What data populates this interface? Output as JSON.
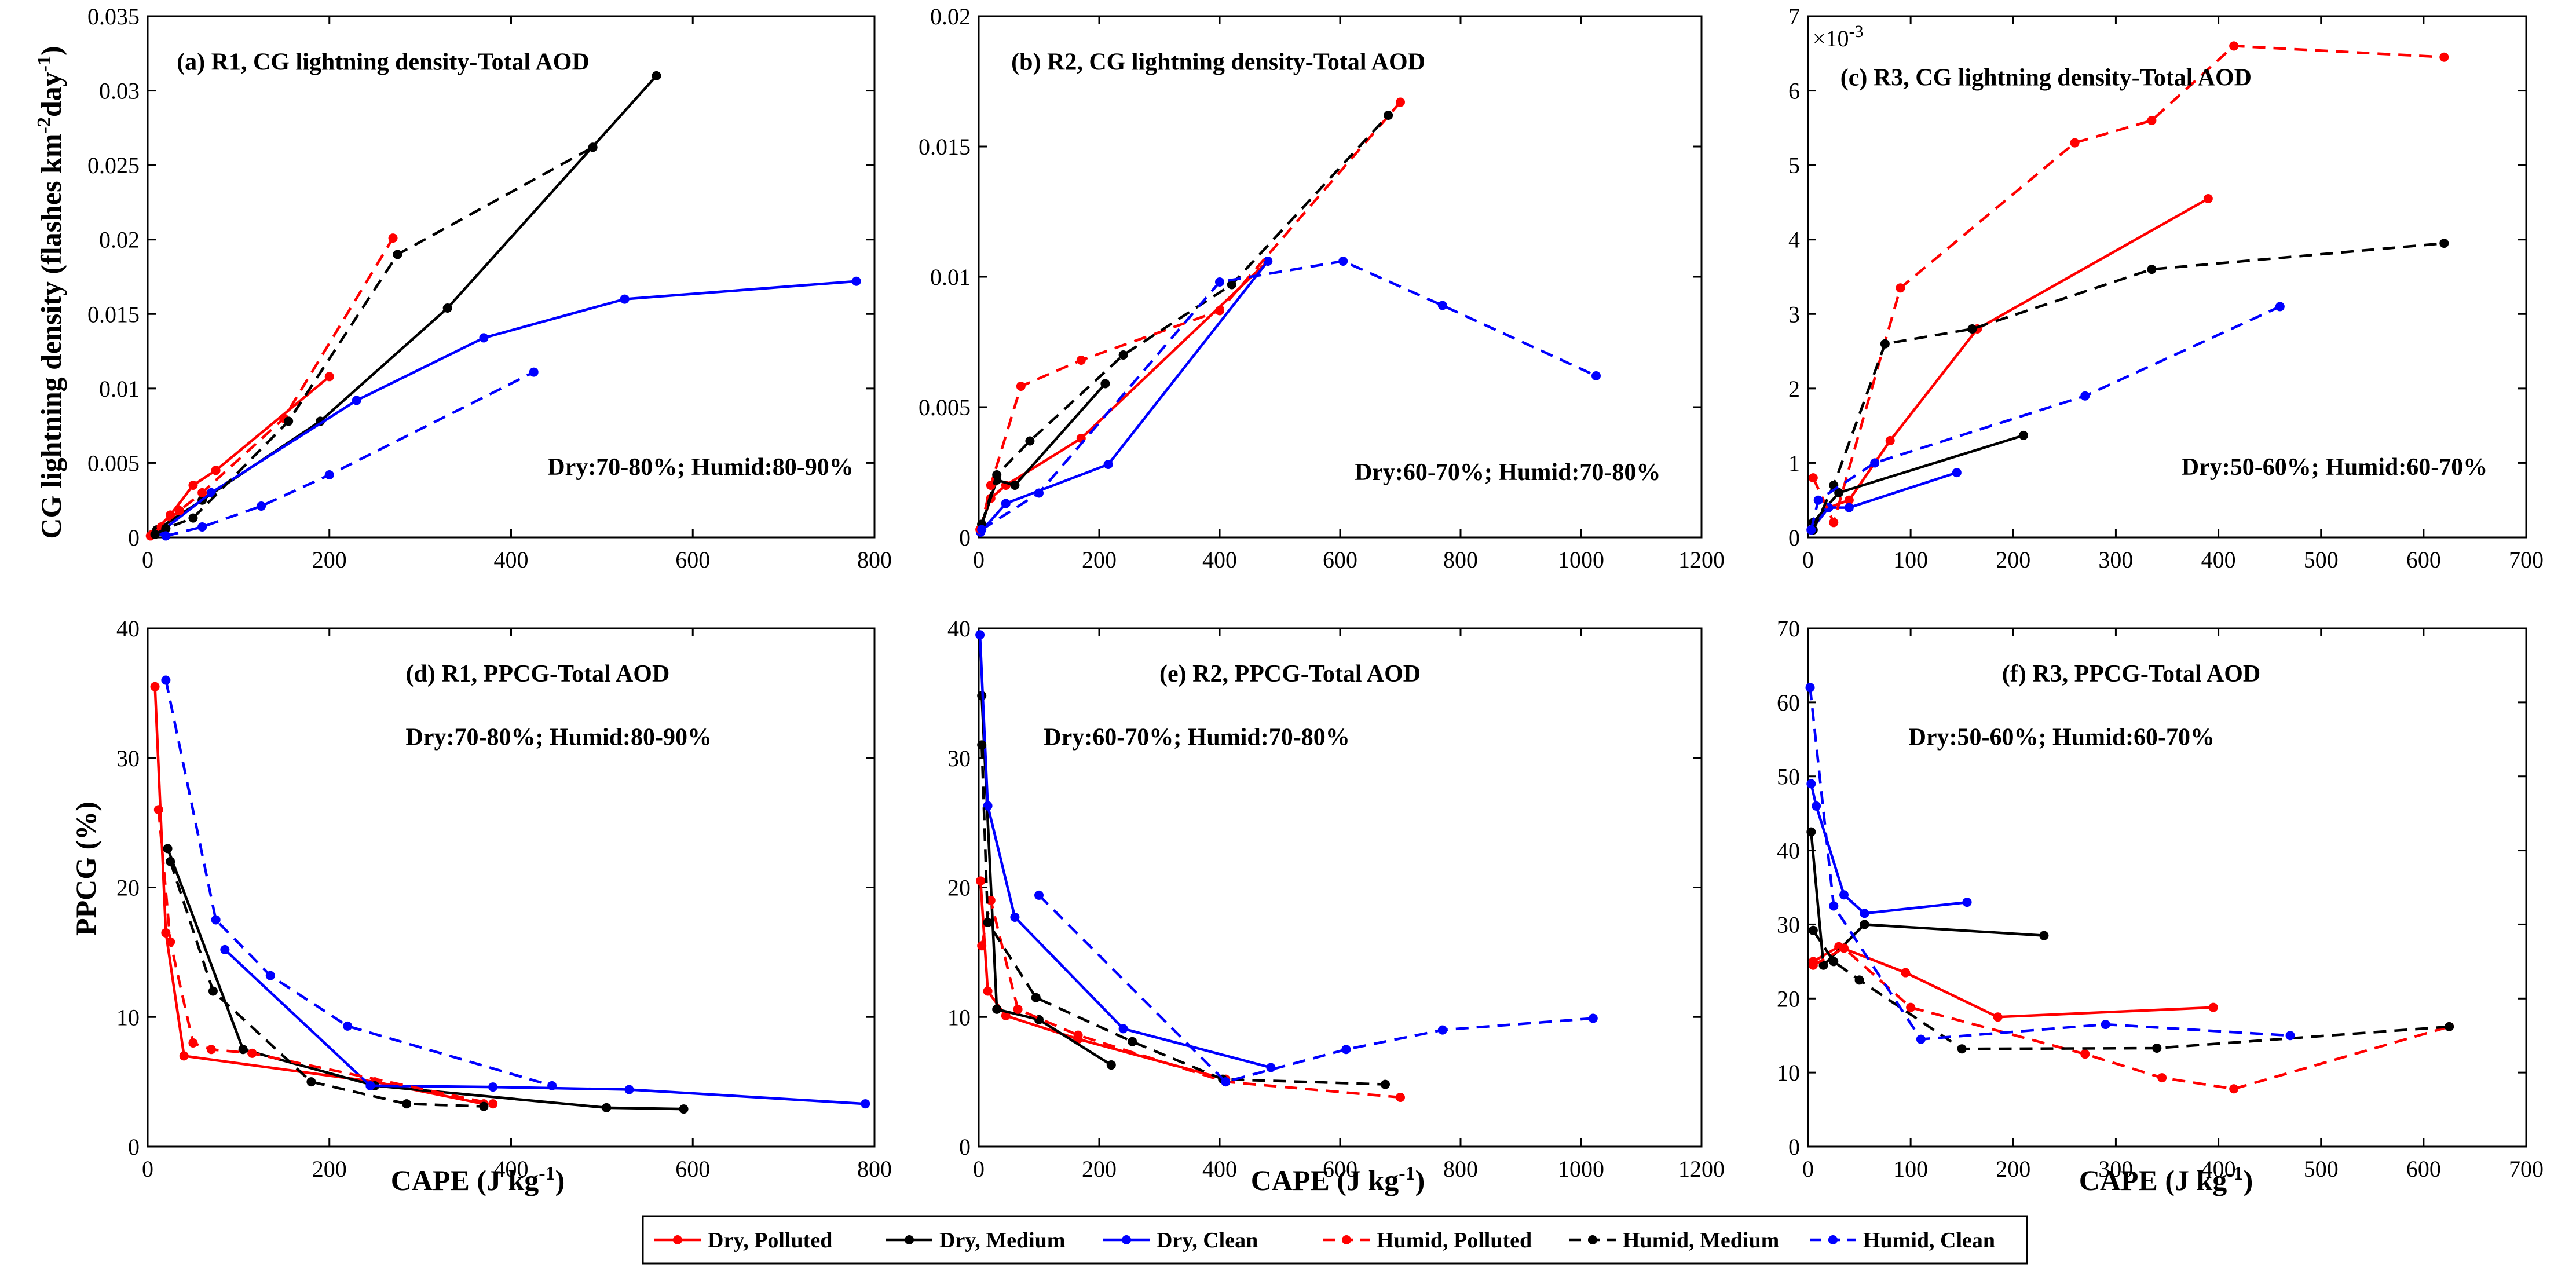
{
  "figure": {
    "ylabel_top": "CG lightning density (flashes km",
    "ylabel_top_exp1": "-2",
    "ylabel_top_mid": "day",
    "ylabel_top_exp2": "-1",
    "ylabel_top_end": ")",
    "ylabel_bottom": "PPCG (%)",
    "xlabel": "CAPE (J kg",
    "xlabel_exp": "-1",
    "xlabel_end": ")",
    "multiplier_base": "×10",
    "multiplier_exp": "-3"
  },
  "legend": [
    {
      "label": "Dry, Polluted",
      "color": "#ff0000",
      "dashed": false
    },
    {
      "label": "Dry, Medium",
      "color": "#000000",
      "dashed": false
    },
    {
      "label": "Dry, Clean",
      "color": "#0000ff",
      "dashed": false
    },
    {
      "label": "Humid, Polluted",
      "color": "#ff0000",
      "dashed": true
    },
    {
      "label": "Humid, Medium",
      "color": "#000000",
      "dashed": true
    },
    {
      "label": "Humid, Clean",
      "color": "#0000ff",
      "dashed": true
    }
  ],
  "chart_data": [
    {
      "id": "a",
      "type": "line",
      "title": "(a) R1, CG lightning density-Total AOD",
      "annotation": "Dry:70-80%; Humid:80-90%",
      "xlim": [
        0,
        800
      ],
      "ylim": [
        0,
        0.035
      ],
      "xticks": [
        0,
        200,
        400,
        600,
        800
      ],
      "xtick_labels": [
        "0",
        "200",
        "400",
        "600",
        "800"
      ],
      "yticks": [
        0,
        0.005,
        0.01,
        0.015,
        0.02,
        0.025,
        0.03,
        0.035
      ],
      "ytick_labels": [
        "0",
        "0.005",
        "0.01",
        "0.015",
        "0.02",
        "0.025",
        "0.03",
        "0.035"
      ],
      "series": [
        {
          "name": "Dry, Polluted",
          "color": "#ff0000",
          "dashed": false,
          "x": [
            3,
            25,
            50,
            75,
            200
          ],
          "y": [
            0.0001,
            0.0015,
            0.0035,
            0.0045,
            0.0108
          ]
        },
        {
          "name": "Dry, Medium",
          "color": "#000000",
          "dashed": false,
          "x": [
            10,
            60,
            190,
            330,
            560
          ],
          "y": [
            0.0005,
            0.0025,
            0.0078,
            0.0154,
            0.031
          ]
        },
        {
          "name": "Dry, Clean",
          "color": "#0000ff",
          "dashed": false,
          "x": [
            15,
            70,
            230,
            370,
            525,
            780
          ],
          "y": [
            0.0004,
            0.003,
            0.0092,
            0.0134,
            0.016,
            0.0172
          ]
        },
        {
          "name": "Humid, Polluted",
          "color": "#ff0000",
          "dashed": true,
          "x": [
            5,
            15,
            35,
            60,
            150,
            270
          ],
          "y": [
            0.0002,
            0.0007,
            0.0018,
            0.003,
            0.008,
            0.0201
          ]
        },
        {
          "name": "Humid, Medium",
          "color": "#000000",
          "dashed": true,
          "x": [
            8,
            20,
            50,
            155,
            275,
            490
          ],
          "y": [
            0.0002,
            0.0006,
            0.0013,
            0.0078,
            0.019,
            0.0262
          ]
        },
        {
          "name": "Humid, Clean",
          "color": "#0000ff",
          "dashed": true,
          "x": [
            20,
            60,
            125,
            200,
            425
          ],
          "y": [
            0.0001,
            0.0007,
            0.0021,
            0.0042,
            0.0111
          ]
        }
      ]
    },
    {
      "id": "b",
      "type": "line",
      "title": "(b) R2, CG lightning density-Total AOD",
      "annotation": "Dry:60-70%; Humid:70-80%",
      "xlim": [
        0,
        1200
      ],
      "ylim": [
        0,
        0.02
      ],
      "xticks": [
        0,
        200,
        400,
        600,
        800,
        1000,
        1200
      ],
      "xtick_labels": [
        "0",
        "200",
        "400",
        "600",
        "800",
        "1000",
        "1200"
      ],
      "yticks": [
        0,
        0.005,
        0.01,
        0.015,
        0.02
      ],
      "ytick_labels": [
        "0",
        "0.005",
        "0.01",
        "0.015",
        "0.02"
      ],
      "series": [
        {
          "name": "Dry, Polluted",
          "color": "#ff0000",
          "dashed": false,
          "x": [
            2,
            20,
            45,
            170,
            480
          ],
          "y": [
            0.0003,
            0.0015,
            0.002,
            0.0038,
            0.0106
          ]
        },
        {
          "name": "Dry, Medium",
          "color": "#000000",
          "dashed": false,
          "x": [
            5,
            30,
            60,
            210
          ],
          "y": [
            0.0005,
            0.0022,
            0.002,
            0.0059
          ]
        },
        {
          "name": "Dry, Clean",
          "color": "#0000ff",
          "dashed": false,
          "x": [
            3,
            45,
            215,
            480
          ],
          "y": [
            0.0002,
            0.0013,
            0.0028,
            0.0106
          ]
        },
        {
          "name": "Humid, Polluted",
          "color": "#ff0000",
          "dashed": true,
          "x": [
            3,
            20,
            70,
            170,
            400,
            700
          ],
          "y": [
            0.0003,
            0.002,
            0.0058,
            0.0068,
            0.0087,
            0.0167
          ]
        },
        {
          "name": "Humid, Medium",
          "color": "#000000",
          "dashed": true,
          "x": [
            5,
            30,
            85,
            240,
            420,
            680
          ],
          "y": [
            0.0005,
            0.0024,
            0.0037,
            0.007,
            0.0097,
            0.0162
          ]
        },
        {
          "name": "Humid, Clean",
          "color": "#0000ff",
          "dashed": true,
          "x": [
            5,
            100,
            400,
            605,
            770,
            1025
          ],
          "y": [
            0.0003,
            0.0017,
            0.0098,
            0.0106,
            0.0089,
            0.0062
          ]
        }
      ]
    },
    {
      "id": "c",
      "type": "line",
      "title": "(c) R3, CG lightning density-Total AOD",
      "annotation": "Dry:50-60%; Humid:60-70%",
      "xlim": [
        0,
        700
      ],
      "ylim": [
        0,
        0.007
      ],
      "xticks": [
        0,
        100,
        200,
        300,
        400,
        500,
        600,
        700
      ],
      "xtick_labels": [
        "0",
        "100",
        "200",
        "300",
        "400",
        "500",
        "600",
        "700"
      ],
      "yticks": [
        0,
        0.001,
        0.002,
        0.003,
        0.004,
        0.005,
        0.006,
        0.007
      ],
      "ytick_labels": [
        "0",
        "1",
        "2",
        "3",
        "4",
        "5",
        "6",
        "7"
      ],
      "series": [
        {
          "name": "Dry, Polluted",
          "color": "#ff0000",
          "dashed": false,
          "x": [
            3,
            20,
            40,
            80,
            165,
            390
          ],
          "y": [
            0.0001,
            0.0004,
            0.0005,
            0.0013,
            0.0028,
            0.00455
          ]
        },
        {
          "name": "Dry, Medium",
          "color": "#000000",
          "dashed": false,
          "x": [
            5,
            30,
            210
          ],
          "y": [
            0.0002,
            0.0006,
            0.00137
          ]
        },
        {
          "name": "Dry, Clean",
          "color": "#0000ff",
          "dashed": false,
          "x": [
            3,
            20,
            40,
            145
          ],
          "y": [
            0.0001,
            0.0004,
            0.0004,
            0.00087
          ]
        },
        {
          "name": "Humid, Polluted",
          "color": "#ff0000",
          "dashed": true,
          "x": [
            5,
            25,
            90,
            260,
            335,
            415,
            620
          ],
          "y": [
            0.0008,
            0.0002,
            0.00335,
            0.0053,
            0.0056,
            0.0066,
            0.00645
          ]
        },
        {
          "name": "Humid, Medium",
          "color": "#000000",
          "dashed": true,
          "x": [
            5,
            25,
            75,
            160,
            335,
            620
          ],
          "y": [
            0.0001,
            0.0007,
            0.0026,
            0.0028,
            0.0036,
            0.00395
          ]
        },
        {
          "name": "Humid, Clean",
          "color": "#0000ff",
          "dashed": true,
          "x": [
            3,
            10,
            65,
            270,
            460
          ],
          "y": [
            0.0001,
            0.0005,
            0.001,
            0.0019,
            0.0031
          ]
        }
      ]
    },
    {
      "id": "d",
      "type": "line",
      "title": "(d) R1, PPCG-Total AOD",
      "annotation": "Dry:70-80%; Humid:80-90%",
      "xlim": [
        0,
        800
      ],
      "ylim": [
        0,
        40
      ],
      "xticks": [
        0,
        200,
        400,
        600,
        800
      ],
      "xtick_labels": [
        "0",
        "200",
        "400",
        "600",
        "800"
      ],
      "yticks": [
        0,
        10,
        20,
        30,
        40
      ],
      "ytick_labels": [
        "0",
        "10",
        "20",
        "30",
        "40"
      ],
      "series": [
        {
          "name": "Dry, Polluted",
          "color": "#ff0000",
          "dashed": false,
          "x": [
            8,
            20,
            40,
            250,
            370
          ],
          "y": [
            35.5,
            16.5,
            7,
            5,
            3.3
          ]
        },
        {
          "name": "Dry, Medium",
          "color": "#000000",
          "dashed": false,
          "x": [
            22,
            105,
            250,
            505,
            590
          ],
          "y": [
            23,
            7.5,
            4.7,
            3,
            2.9
          ]
        },
        {
          "name": "Dry, Clean",
          "color": "#0000ff",
          "dashed": false,
          "x": [
            85,
            245,
            380,
            530,
            790
          ],
          "y": [
            15.2,
            4.7,
            4.6,
            4.4,
            3.3
          ]
        },
        {
          "name": "Humid, Polluted",
          "color": "#ff0000",
          "dashed": true,
          "x": [
            12,
            25,
            50,
            70,
            115,
            380
          ],
          "y": [
            26,
            15.8,
            8,
            7.5,
            7.2,
            3.3
          ]
        },
        {
          "name": "Humid, Medium",
          "color": "#000000",
          "dashed": true,
          "x": [
            25,
            72,
            180,
            285,
            370
          ],
          "y": [
            22,
            12,
            5,
            3.3,
            3.1
          ]
        },
        {
          "name": "Humid, Clean",
          "color": "#0000ff",
          "dashed": true,
          "x": [
            20,
            75,
            135,
            220,
            445
          ],
          "y": [
            36,
            17.5,
            13.2,
            9.3,
            4.7
          ]
        }
      ]
    },
    {
      "id": "e",
      "type": "line",
      "title": "(e) R2, PPCG-Total AOD",
      "annotation": "Dry:60-70%; Humid:70-80%",
      "xlim": [
        0,
        1200
      ],
      "ylim": [
        0,
        40
      ],
      "xticks": [
        0,
        200,
        400,
        600,
        800,
        1000,
        1200
      ],
      "xtick_labels": [
        "0",
        "200",
        "400",
        "600",
        "800",
        "1000",
        "1200"
      ],
      "yticks": [
        0,
        10,
        20,
        30,
        40
      ],
      "ytick_labels": [
        "0",
        "10",
        "20",
        "30",
        "40"
      ],
      "series": [
        {
          "name": "Dry, Polluted",
          "color": "#ff0000",
          "dashed": false,
          "x": [
            3,
            15,
            45,
            165,
            410
          ],
          "y": [
            20.5,
            12,
            10.1,
            8.3,
            5.2
          ]
        },
        {
          "name": "Dry, Medium",
          "color": "#000000",
          "dashed": false,
          "x": [
            5,
            30,
            100,
            220
          ],
          "y": [
            34.8,
            10.6,
            9.8,
            6.3
          ]
        },
        {
          "name": "Dry, Clean",
          "color": "#0000ff",
          "dashed": false,
          "x": [
            2,
            15,
            60,
            240,
            485
          ],
          "y": [
            39.5,
            26.3,
            17.7,
            9.1,
            6.1
          ]
        },
        {
          "name": "Humid, Polluted",
          "color": "#ff0000",
          "dashed": true,
          "x": [
            5,
            20,
            65,
            165,
            410,
            700
          ],
          "y": [
            15.5,
            19,
            10.6,
            8.6,
            5,
            3.8
          ]
        },
        {
          "name": "Humid, Medium",
          "color": "#000000",
          "dashed": true,
          "x": [
            5,
            15,
            95,
            255,
            405,
            675
          ],
          "y": [
            31,
            17.3,
            11.5,
            8.1,
            5.2,
            4.8
          ]
        },
        {
          "name": "Humid, Clean",
          "color": "#0000ff",
          "dashed": true,
          "x": [
            100,
            410,
            610,
            770,
            1020
          ],
          "y": [
            19.4,
            5,
            7.5,
            9,
            9.9
          ]
        }
      ]
    },
    {
      "id": "f",
      "type": "line",
      "title": "(f) R3, PPCG-Total AOD",
      "annotation": "Dry:50-60%; Humid:60-70%",
      "xlim": [
        0,
        700
      ],
      "ylim": [
        0,
        70
      ],
      "xticks": [
        0,
        100,
        200,
        300,
        400,
        500,
        600,
        700
      ],
      "xtick_labels": [
        "0",
        "100",
        "200",
        "300",
        "400",
        "500",
        "600",
        "700"
      ],
      "yticks": [
        0,
        10,
        20,
        30,
        40,
        50,
        60,
        70
      ],
      "ytick_labels": [
        "0",
        "10",
        "20",
        "30",
        "40",
        "50",
        "60",
        "70"
      ],
      "series": [
        {
          "name": "Dry, Polluted",
          "color": "#ff0000",
          "dashed": false,
          "x": [
            5,
            30,
            95,
            185,
            395
          ],
          "y": [
            25,
            27,
            23.5,
            17.5,
            18.8
          ]
        },
        {
          "name": "Dry, Medium",
          "color": "#000000",
          "dashed": false,
          "x": [
            3,
            15,
            55,
            230
          ],
          "y": [
            42.5,
            24.5,
            30,
            28.5
          ]
        },
        {
          "name": "Dry, Clean",
          "color": "#0000ff",
          "dashed": false,
          "x": [
            3,
            8,
            35,
            55,
            155
          ],
          "y": [
            49,
            46,
            34,
            31.5,
            33
          ]
        },
        {
          "name": "Humid, Polluted",
          "color": "#ff0000",
          "dashed": true,
          "x": [
            5,
            35,
            100,
            270,
            345,
            415,
            625
          ],
          "y": [
            24.5,
            26.8,
            18.8,
            12.5,
            9.3,
            7.8,
            16.2
          ]
        },
        {
          "name": "Humid, Medium",
          "color": "#000000",
          "dashed": true,
          "x": [
            5,
            25,
            50,
            150,
            340,
            625
          ],
          "y": [
            29.2,
            25,
            22.5,
            13.2,
            13.3,
            16.2
          ]
        },
        {
          "name": "Humid, Clean",
          "color": "#0000ff",
          "dashed": true,
          "x": [
            2,
            25,
            110,
            290,
            470
          ],
          "y": [
            62,
            32.5,
            14.5,
            16.5,
            15
          ]
        }
      ]
    }
  ]
}
